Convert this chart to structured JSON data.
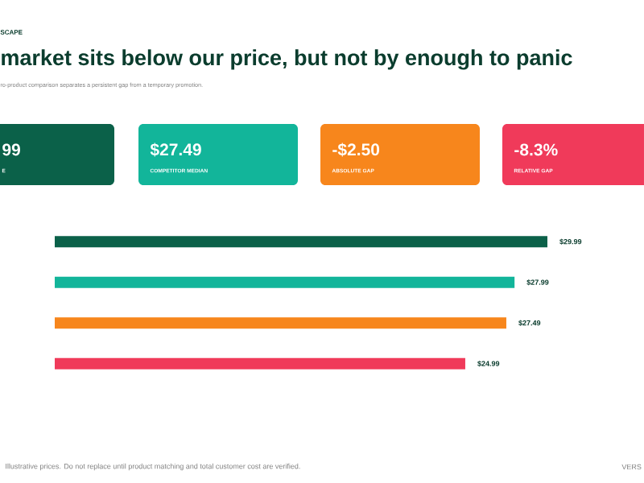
{
  "chart_data": {
    "type": "bar",
    "orientation": "horizontal",
    "title": "market sits below our price, but not by enough to panic",
    "subtitle": "ro-product comparison separates a persistent gap from a temporary promotion.",
    "categories": [
      null,
      null,
      null,
      null
    ],
    "values": [
      29.99,
      27.99,
      27.49,
      24.99
    ],
    "colors": [
      "#0b6149",
      "#12b59a",
      "#f7861c",
      "#f03a5a"
    ],
    "value_labels": [
      "$29.99",
      "$27.99",
      "$27.49",
      "$24.99"
    ],
    "annotations": [
      "SCAPE",
      "99",
      "E",
      "$27.49",
      "COMPETITOR MEDIAN",
      "-$2.50",
      "ABSOLUTE GAP",
      "-8.3%",
      "RELATIVE GAP",
      "Illustrative prices. Do not replace until product matching and total customer cost are verified.",
      "VERS"
    ]
  }
}
